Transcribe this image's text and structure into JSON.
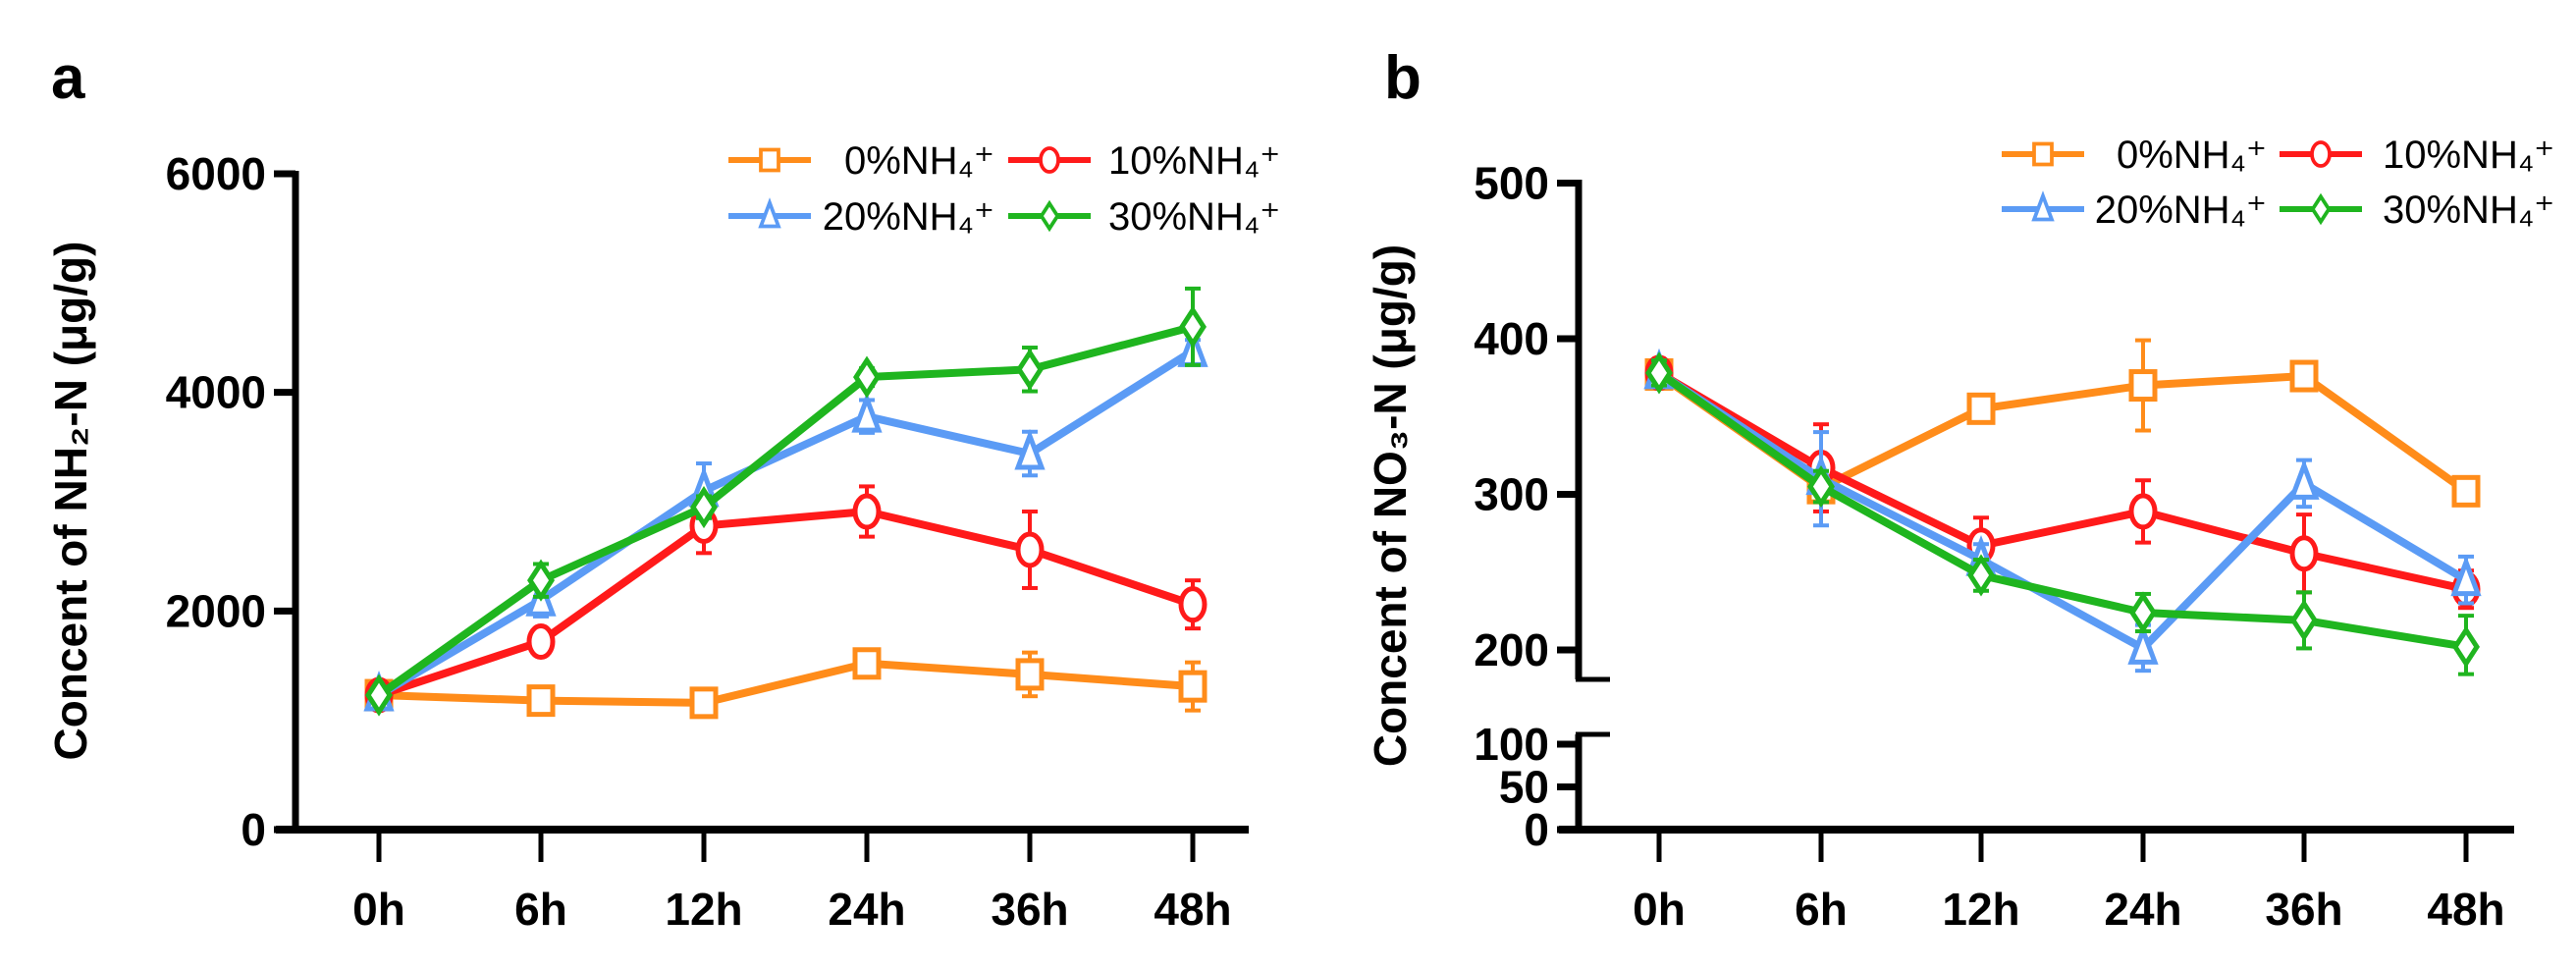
{
  "chart_data": [
    {
      "type": "line",
      "panel_label": "a",
      "ylabel": "Concent of NH₂-N (μg/g)",
      "xlabel": "",
      "categories": [
        "0h",
        "6h",
        "12h",
        "24h",
        "36h",
        "48h"
      ],
      "ylim": [
        0,
        6000
      ],
      "yticks": [
        "0",
        "2000",
        "4000",
        "6000"
      ],
      "ytick_values": [
        0,
        2000,
        4000,
        6000
      ],
      "grid": false,
      "legend_position": "top-right",
      "error_bars": true,
      "series": [
        {
          "name": "0%NH₄⁺",
          "color": "#ff8c1a",
          "marker": "square",
          "values": [
            1230,
            1180,
            1160,
            1520,
            1420,
            1310
          ],
          "errors": [
            60,
            60,
            60,
            80,
            200,
            220
          ]
        },
        {
          "name": "10%NH₄⁺",
          "color": "#ff1a1a",
          "marker": "circle",
          "values": [
            1230,
            1720,
            2780,
            2910,
            2560,
            2060
          ],
          "errors": [
            60,
            60,
            250,
            230,
            350,
            220
          ]
        },
        {
          "name": "20%NH₄⁺",
          "color": "#5b9bf5",
          "marker": "triangle",
          "values": [
            1230,
            2100,
            3100,
            3780,
            3440,
            4380
          ],
          "errors": [
            60,
            150,
            250,
            150,
            200,
            100
          ]
        },
        {
          "name": "30%NH₄⁺",
          "color": "#1fb51f",
          "marker": "diamond",
          "values": [
            1230,
            2280,
            2950,
            4140,
            4210,
            4600
          ],
          "errors": [
            60,
            150,
            100,
            80,
            200,
            350
          ]
        }
      ]
    },
    {
      "type": "line",
      "panel_label": "b",
      "ylabel": "Concent of NO₃-N (μg/g)",
      "xlabel": "",
      "categories": [
        "0h",
        "6h",
        "12h",
        "24h",
        "36h",
        "48h"
      ],
      "ylim": [
        0,
        500
      ],
      "axis_break": [
        100,
        200
      ],
      "yticks": [
        "0",
        "50",
        "100",
        "200",
        "300",
        "400",
        "500"
      ],
      "ytick_values": [
        0,
        50,
        100,
        200,
        300,
        400,
        500
      ],
      "grid": false,
      "legend_position": "top-right",
      "error_bars": true,
      "series": [
        {
          "name": "0%NH₄⁺",
          "color": "#ff8c1a",
          "marker": "square",
          "values": [
            377,
            304,
            355,
            370,
            376,
            302
          ],
          "errors": [
            8,
            8,
            8,
            29,
            5,
            6
          ]
        },
        {
          "name": "10%NH₄⁺",
          "color": "#ff1a1a",
          "marker": "circle",
          "values": [
            378,
            317,
            267,
            289,
            262,
            239
          ],
          "errors": [
            8,
            28,
            18,
            20,
            25,
            12
          ]
        },
        {
          "name": "20%NH₄⁺",
          "color": "#5b9bf5",
          "marker": "triangle",
          "values": [
            378,
            310,
            258,
            201,
            307,
            245
          ],
          "errors": [
            8,
            30,
            10,
            15,
            15,
            15
          ]
        },
        {
          "name": "30%NH₄⁺",
          "color": "#1fb51f",
          "marker": "diamond",
          "values": [
            378,
            305,
            248,
            224,
            219,
            202
          ],
          "errors": [
            8,
            10,
            10,
            12,
            18,
            20
          ]
        }
      ]
    }
  ]
}
